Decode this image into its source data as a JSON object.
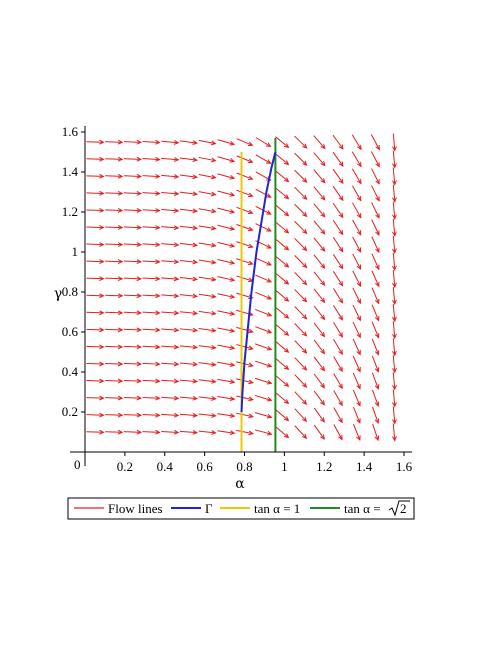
{
  "chart_data": {
    "type": "vector-field",
    "xlabel": "α",
    "ylabel": "γ",
    "xlim": [
      0,
      1.6
    ],
    "ylim": [
      0,
      1.6
    ],
    "origin_label": "0",
    "x_ticks": [
      0.2,
      0.4,
      0.6,
      0.8,
      1,
      1.2,
      1.4,
      1.6
    ],
    "x_tick_labels": [
      "0.2",
      "0.4",
      "0.6",
      "0.8",
      "1",
      "1.2",
      "1.4",
      "1.6"
    ],
    "y_ticks": [
      0.2,
      0.4,
      0.6,
      0.8,
      1,
      1.2,
      1.4,
      1.6
    ],
    "y_tick_labels": [
      "0.2",
      "0.4",
      "0.6",
      "0.8",
      "1",
      "1.2",
      "1.4",
      "1.6"
    ],
    "field": {
      "x_range": [
        0.05,
        1.55
      ],
      "y_range": [
        0.1,
        1.55
      ],
      "x_count": 17,
      "y_count": 18
    },
    "series": [
      {
        "name": "Γ",
        "color": "#1f24d6",
        "type": "line",
        "x": [
          0.785,
          0.79,
          0.8,
          0.815,
          0.835,
          0.86,
          0.885,
          0.91,
          0.935,
          0.955
        ],
        "y": [
          0.2,
          0.3,
          0.45,
          0.6,
          0.8,
          1.0,
          1.15,
          1.3,
          1.42,
          1.5
        ]
      },
      {
        "name": "tan α = 1",
        "color": "#f0c800",
        "type": "vline",
        "x": [
          0.785,
          0.785
        ],
        "y": [
          0.0,
          1.5
        ]
      },
      {
        "name": "tan α = √2",
        "color": "#1f8a1f",
        "type": "vline",
        "x": [
          0.955,
          0.955
        ],
        "y": [
          0.0,
          1.57
        ]
      }
    ],
    "legend": {
      "placement": "bottom",
      "entries": [
        {
          "label": "Flow lines",
          "color": "#e61e1e"
        },
        {
          "label": "Γ",
          "color": "#1f24d6"
        },
        {
          "label": "tan α = 1",
          "color": "#f0c800"
        },
        {
          "label_prefix": "tan α = ",
          "label_radicand": "2",
          "color": "#1f8a1f"
        }
      ]
    },
    "colors": {
      "flow": "#e61e1e",
      "axes": "#000000"
    },
    "grid": false
  }
}
